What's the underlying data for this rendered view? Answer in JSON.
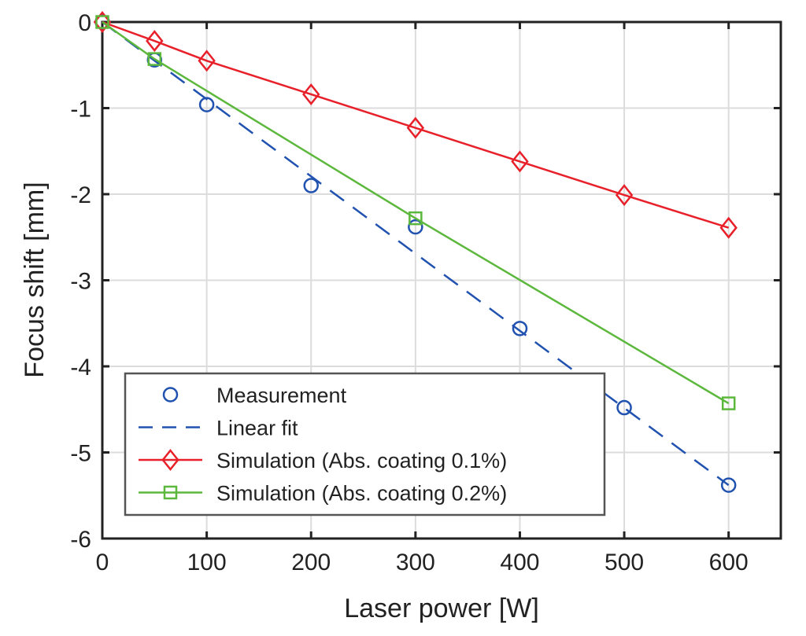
{
  "chart_data": {
    "type": "line",
    "title": "",
    "xlabel": "Laser power [W]",
    "ylabel": "Focus shift [mm]",
    "xlim": [
      0,
      650
    ],
    "ylim": [
      -6,
      0
    ],
    "xticks": [
      0,
      100,
      200,
      300,
      400,
      500,
      600
    ],
    "yticks": [
      0,
      -1,
      -2,
      -3,
      -4,
      -5,
      -6
    ],
    "xtick_labels": [
      "0",
      "100",
      "200",
      "300",
      "400",
      "500",
      "600"
    ],
    "ytick_labels": [
      "0",
      "-1",
      "-2",
      "-3",
      "-4",
      "-5",
      "-6"
    ],
    "grid": true,
    "legend_position": "bottom-left",
    "series": [
      {
        "name": "Measurement",
        "style": "markers",
        "marker": "circle",
        "color": "#2152b0",
        "x": [
          0,
          50,
          100,
          200,
          300,
          400,
          500,
          600
        ],
        "y": [
          0,
          -0.44,
          -0.96,
          -1.9,
          -2.38,
          -3.56,
          -4.48,
          -5.38
        ]
      },
      {
        "name": "Linear fit",
        "style": "dashed",
        "marker": "none",
        "color": "#2152b0",
        "x": [
          0,
          600
        ],
        "y": [
          0,
          -5.38
        ]
      },
      {
        "name": "Simulation (Abs. coating 0.1%)",
        "style": "solid",
        "marker": "diamond",
        "color": "#e8202a",
        "x": [
          0,
          50,
          100,
          200,
          300,
          400,
          500,
          600
        ],
        "y": [
          0,
          -0.22,
          -0.45,
          -0.84,
          -1.23,
          -1.62,
          -2.01,
          -2.39
        ]
      },
      {
        "name": "Simulation (Abs. coating 0.2%)",
        "style": "solid",
        "marker": "square",
        "color": "#5cb83c",
        "x": [
          0,
          50,
          300,
          600
        ],
        "y": [
          0,
          -0.43,
          -2.28,
          -4.43
        ]
      }
    ]
  }
}
